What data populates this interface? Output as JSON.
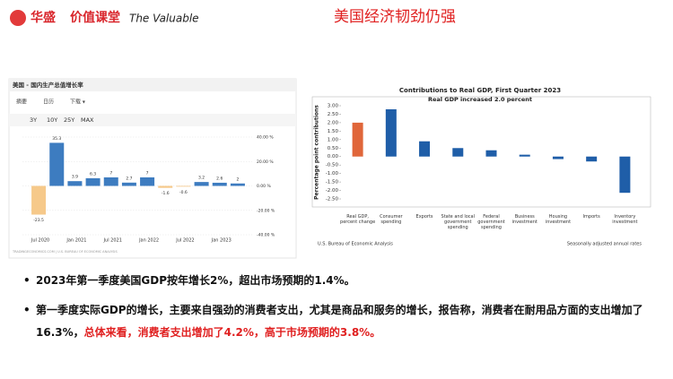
{
  "header": {
    "logo_brand": "华盛",
    "logo_course": "价值课堂",
    "logo_tagline": "The Valuable",
    "title": "美国经济韧劲仍强"
  },
  "chart_data": [
    {
      "type": "bar",
      "title": "美国 - 国内生产总值增长率",
      "tabs": [
        "摘要",
        "日历",
        "下载 ▾"
      ],
      "ranges": [
        "3Y",
        "10Y",
        "25Y",
        "MAX"
      ],
      "categories": [
        "Jul 2020",
        null,
        "Jan 2021",
        null,
        "Jul 2021",
        null,
        "Jan 2022",
        null,
        "Jul 2022",
        null,
        "Jan 2023",
        null
      ],
      "values": [
        -23.5,
        35.3,
        3.9,
        6.3,
        7,
        2.7,
        7,
        -1.6,
        -0.6,
        3.2,
        2.6,
        2
      ],
      "color": "#3d7cc0",
      "negative_color": "#f6c98a",
      "ylim": [
        -40,
        40
      ],
      "yticks": [
        {
          "value": 40,
          "label": "40.00 %"
        },
        {
          "value": 20,
          "label": "20.00 %"
        },
        {
          "value": 0,
          "label": "0.00 %"
        },
        {
          "value": -20,
          "label": "-20.00 %"
        },
        {
          "value": -40,
          "label": "-40.00 %"
        }
      ],
      "grid": true,
      "source": "TRADINGECONOMICS.COM | U.S. BUREAU OF ECONOMIC ANALYSIS"
    },
    {
      "type": "bar",
      "title": "Contributions to Real GDP, First Quarter 2023",
      "subtitle": "Real GDP increased 2.0 percent",
      "y_label": "Percentage point contributions",
      "categories": [
        "Real GDP, percent change",
        "Consumer spending",
        "Exports",
        "State and local government spending",
        "Federal government spending",
        "Business investment",
        "Housing investment",
        "Imports",
        "Inventory investment"
      ],
      "values": [
        2.0,
        2.79,
        0.9,
        0.5,
        0.37,
        0.11,
        -0.15,
        -0.29,
        -2.14
      ],
      "colors": [
        "#e0663a",
        "#1f5ea8",
        "#1f5ea8",
        "#1f5ea8",
        "#1f5ea8",
        "#1f5ea8",
        "#1f5ea8",
        "#1f5ea8",
        "#1f5ea8"
      ],
      "ylim": [
        -2.5,
        3.0
      ],
      "yticks": [
        {
          "value": 3,
          "label": "3.00"
        },
        {
          "value": 2.5,
          "label": "2.50"
        },
        {
          "value": 2,
          "label": "2.00"
        },
        {
          "value": 1.5,
          "label": "1.50"
        },
        {
          "value": 1,
          "label": "1.00"
        },
        {
          "value": 0.5,
          "label": "0.50"
        },
        {
          "value": 0,
          "label": "0.00"
        },
        {
          "value": -0.5,
          "label": "-0.50"
        },
        {
          "value": -1,
          "label": "-1.00"
        },
        {
          "value": -1.5,
          "label": "-1.50"
        },
        {
          "value": -2,
          "label": "-2.00"
        },
        {
          "value": -2.5,
          "label": "-2.50"
        }
      ],
      "grid": false,
      "source": "U.S. Bureau of Economic Analysis",
      "note": "Seasonally adjusted annual rates"
    }
  ],
  "bullets": [
    {
      "segments": [
        "2023年第一季度美国GDP按年增长2%，超出市场预期的1.4%。"
      ]
    },
    {
      "segments": [
        "第一季度实际GDP的增长，主要来自强劲的消费者支出，尤其是商品和服务的增长，报告称，消费者在耐用品方面的支出增加了16.3%，",
        "总体来看，消费者支出增加了4.2%，高于市场预期的3.8%。"
      ]
    }
  ]
}
